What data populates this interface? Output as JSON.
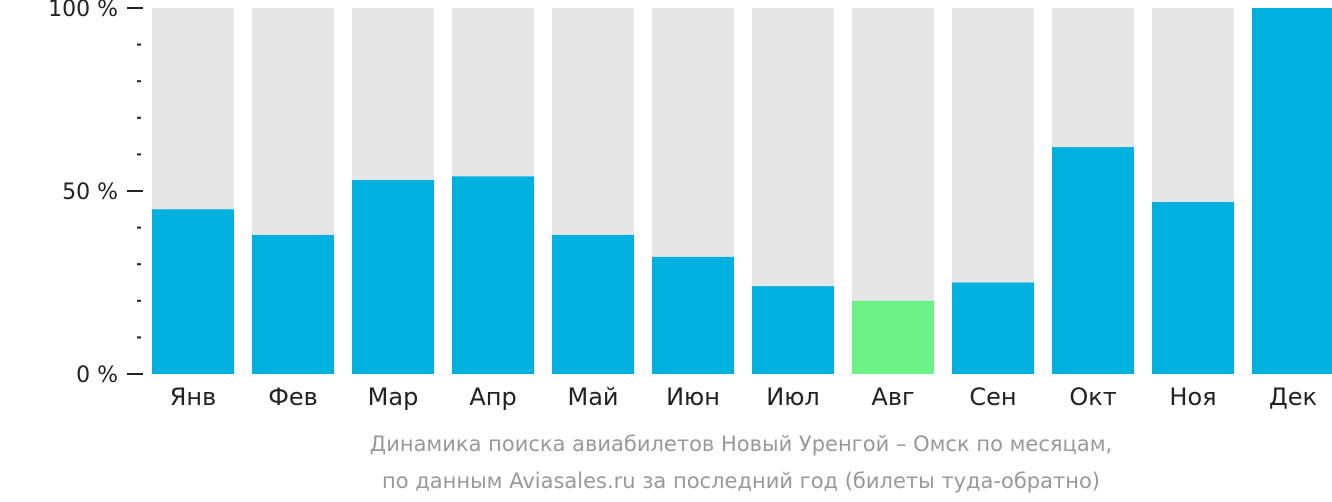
{
  "chart_data": {
    "type": "bar",
    "categories": [
      "Янв",
      "Фев",
      "Мар",
      "Апр",
      "Май",
      "Июн",
      "Июл",
      "Авг",
      "Сен",
      "Окт",
      "Ноя",
      "Дек"
    ],
    "values": [
      45,
      38,
      53,
      54,
      38,
      32,
      24,
      20,
      25,
      62,
      47,
      100
    ],
    "highlight_index": 7,
    "ylim": [
      0,
      100
    ],
    "y_ticks": [
      {
        "value": 0,
        "label": "0 %"
      },
      {
        "value": 50,
        "label": "50 %"
      },
      {
        "value": 100,
        "label": "100 %"
      }
    ],
    "minor_tick_step": 10,
    "title": "",
    "xlabel": "",
    "ylabel": "",
    "grid": false,
    "colors": {
      "bar": "#00b0de",
      "highlight": "#6cf184",
      "background_bar": "#e6e6e6",
      "axis": "#222222",
      "caption": "#999999"
    }
  },
  "caption": {
    "line1": "Динамика поиска авиабилетов Новый Уренгой – Омск по месяцам,",
    "line2": "по данным Aviasales.ru за последний год (билеты туда-обратно)"
  }
}
